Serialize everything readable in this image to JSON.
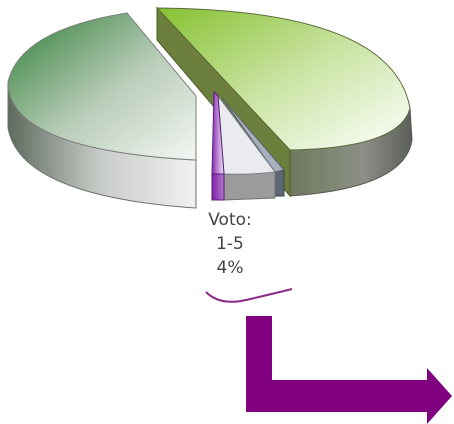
{
  "chart_data": {
    "type": "pie",
    "style": "3d-exploded",
    "slices": [
      {
        "id": "left",
        "share": 0.44,
        "color": "#3f8f3f",
        "label": null
      },
      {
        "id": "right",
        "share": 0.48,
        "color": "#8dc43b",
        "label": null
      },
      {
        "id": "voto-1-5",
        "share": 0.04,
        "color": "#8a2bb5",
        "label": {
          "category": "Voto:",
          "range": "1-5",
          "value": "4%"
        }
      },
      {
        "id": "small-gray",
        "share": 0.02,
        "color": "#9fa9b8",
        "label": null
      },
      {
        "id": "small-slate",
        "share": 0.02,
        "color": "#5d6673",
        "label": null
      }
    ]
  },
  "annotation": {
    "underline_color": "#8a2a8a",
    "arrow_color": "#800080"
  }
}
